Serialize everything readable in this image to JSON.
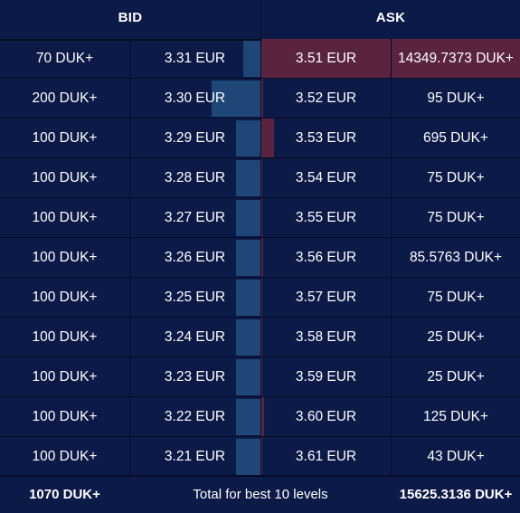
{
  "header": {
    "bid_label": "BID",
    "ask_label": "ASK"
  },
  "levels": [
    {
      "bid_size": "70 DUK+",
      "bid_price": "3.31 EUR",
      "ask_price": "3.51 EUR",
      "ask_size": "14349.7373 DUK+",
      "bid_depth": 0.065,
      "ask_depth": 1.0
    },
    {
      "bid_size": "200 DUK+",
      "bid_price": "3.30 EUR",
      "ask_price": "3.52 EUR",
      "ask_size": "95 DUK+",
      "bid_depth": 0.187,
      "ask_depth": 0.006
    },
    {
      "bid_size": "100 DUK+",
      "bid_price": "3.29 EUR",
      "ask_price": "3.53 EUR",
      "ask_size": "695 DUK+",
      "bid_depth": 0.093,
      "ask_depth": 0.048
    },
    {
      "bid_size": "100 DUK+",
      "bid_price": "3.28 EUR",
      "ask_price": "3.54 EUR",
      "ask_size": "75 DUK+",
      "bid_depth": 0.093,
      "ask_depth": 0.005
    },
    {
      "bid_size": "100 DUK+",
      "bid_price": "3.27 EUR",
      "ask_price": "3.55 EUR",
      "ask_size": "75 DUK+",
      "bid_depth": 0.093,
      "ask_depth": 0.005
    },
    {
      "bid_size": "100 DUK+",
      "bid_price": "3.26 EUR",
      "ask_price": "3.56 EUR",
      "ask_size": "85.5763 DUK+",
      "bid_depth": 0.093,
      "ask_depth": 0.006
    },
    {
      "bid_size": "100 DUK+",
      "bid_price": "3.25 EUR",
      "ask_price": "3.57 EUR",
      "ask_size": "75 DUK+",
      "bid_depth": 0.093,
      "ask_depth": 0.005
    },
    {
      "bid_size": "100 DUK+",
      "bid_price": "3.24 EUR",
      "ask_price": "3.58 EUR",
      "ask_size": "25 DUK+",
      "bid_depth": 0.093,
      "ask_depth": 0.002
    },
    {
      "bid_size": "100 DUK+",
      "bid_price": "3.23 EUR",
      "ask_price": "3.59 EUR",
      "ask_size": "25 DUK+",
      "bid_depth": 0.093,
      "ask_depth": 0.002
    },
    {
      "bid_size": "100 DUK+",
      "bid_price": "3.22 EUR",
      "ask_price": "3.60 EUR",
      "ask_size": "125 DUK+",
      "bid_depth": 0.093,
      "ask_depth": 0.009
    },
    {
      "bid_size": "100 DUK+",
      "bid_price": "3.21 EUR",
      "ask_price": "3.61 EUR",
      "ask_size": "43 DUK+",
      "bid_depth": 0.093,
      "ask_depth": 0.003
    }
  ],
  "footer": {
    "bid_total": "1070 DUK+",
    "caption": "Total for best 10 levels",
    "ask_total": "15625.3136 DUK+"
  },
  "colors": {
    "background": "#0c1a47",
    "grid": "#050c26",
    "bid_bar": "#1e4677",
    "ask_bar": "#5a2440",
    "text": "#ffffff"
  }
}
